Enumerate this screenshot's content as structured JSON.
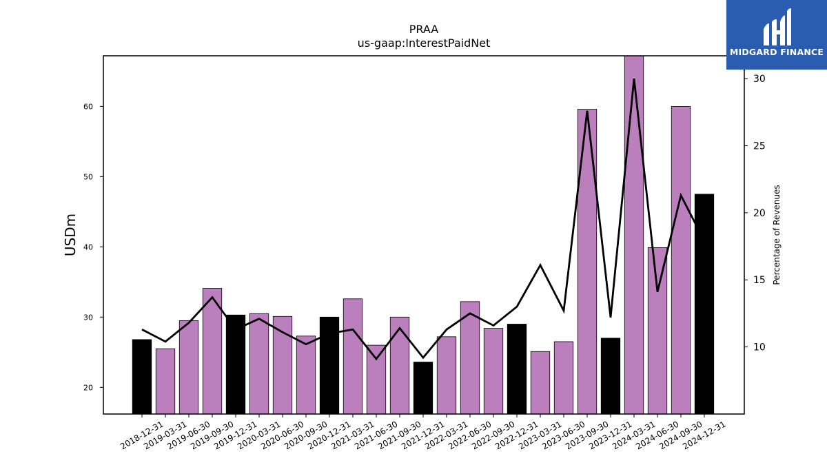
{
  "brand": {
    "name": "MIDGARD FINANCE",
    "logo_icon": "midgard-m-logo-icon",
    "color": "#2a5db0"
  },
  "chart_data": {
    "type": "bar",
    "title": "PRAA",
    "subtitle": "us-gaap:InterestPaidNet",
    "ylabel": "USDm",
    "y2label": "Percentage of Revenues",
    "ylim": [
      16.2,
      67.2
    ],
    "y2lim": [
      5.0,
      31.7
    ],
    "yticks": [
      20,
      30,
      40,
      50,
      60
    ],
    "y2ticks": [
      10,
      15,
      20,
      25,
      30
    ],
    "categories": [
      "2018-12-31",
      "2019-03-31",
      "2019-06-30",
      "2019-09-30",
      "2019-12-31",
      "2020-03-31",
      "2020-06-30",
      "2020-09-30",
      "2020-12-31",
      "2021-03-31",
      "2021-06-30",
      "2021-09-30",
      "2021-12-31",
      "2022-03-31",
      "2022-06-30",
      "2022-09-30",
      "2022-12-31",
      "2023-03-31",
      "2023-06-30",
      "2023-09-30",
      "2023-12-31",
      "2024-03-31",
      "2024-06-30",
      "2024-09-30",
      "2024-12-31"
    ],
    "series": [
      {
        "kind": "bar",
        "axis": "left",
        "values": [
          26.8,
          25.5,
          29.5,
          34.1,
          30.3,
          30.5,
          30.1,
          27.3,
          30.0,
          32.6,
          26.0,
          30.0,
          23.6,
          27.2,
          32.2,
          28.4,
          29.0,
          25.1,
          26.5,
          59.6,
          27.0,
          67.2,
          39.9,
          60.0,
          47.5
        ],
        "fiscal_year_end": [
          true,
          false,
          false,
          false,
          true,
          false,
          false,
          false,
          true,
          false,
          false,
          false,
          true,
          false,
          false,
          false,
          true,
          false,
          false,
          false,
          true,
          false,
          false,
          false,
          true
        ]
      },
      {
        "kind": "line",
        "axis": "right",
        "values": [
          11.3,
          10.4,
          11.8,
          13.7,
          11.3,
          12.1,
          11.1,
          10.2,
          11.0,
          11.3,
          9.1,
          11.4,
          9.2,
          11.3,
          12.5,
          11.6,
          13.0,
          16.1,
          12.7,
          27.6,
          12.2,
          30.0,
          14.1,
          21.3,
          17.9
        ]
      }
    ],
    "colors": {
      "bar": "#bb7fbd",
      "bar_fiscal_year_end": "#000000",
      "line": "#000000"
    },
    "grid": false
  }
}
